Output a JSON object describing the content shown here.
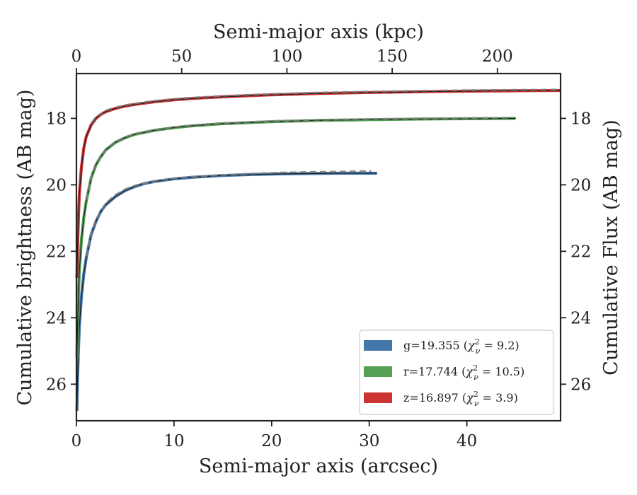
{
  "chart_data": {
    "type": "line",
    "xlabel": "Semi-major axis (arcsec)",
    "xlabel_top": "Semi-major axis (kpc)",
    "ylabel": "Cumulative brightness (AB mag)",
    "ylabel_right": "Cumulative Flux (AB mag)",
    "xlim": [
      0,
      49.6
    ],
    "xlim_top_kpc": [
      0,
      230
    ],
    "ylim": [
      27.1,
      16.65
    ],
    "y_inverted": true,
    "x_ticks": [
      "0",
      "10",
      "20",
      "30",
      "40"
    ],
    "x_ticks_top": [
      "0",
      "50",
      "100",
      "150",
      "200"
    ],
    "y_ticks": [
      "18",
      "20",
      "22",
      "24",
      "26"
    ],
    "legend_position": "lower-right",
    "series": [
      {
        "name": "g=19.355 ($\\chi^2_\\nu=9.2$)",
        "legend_main": "g=19.355 (",
        "legend_chi": "χ",
        "legend_sup": "2",
        "legend_sub": "ν",
        "legend_rest": " = 9.2)",
        "color": "#4477aa",
        "x": [
          0.05,
          0.1,
          0.2,
          0.3,
          0.5,
          0.75,
          1.0,
          1.5,
          2.0,
          2.5,
          3,
          4,
          5,
          6,
          7,
          8,
          10,
          12,
          15,
          18,
          21,
          24,
          27,
          29,
          30.8
        ],
        "y": [
          26.8,
          26.0,
          25.0,
          24.3,
          23.4,
          22.7,
          22.2,
          21.5,
          21.1,
          20.8,
          20.6,
          20.35,
          20.17,
          20.05,
          19.96,
          19.9,
          19.82,
          19.77,
          19.72,
          19.69,
          19.67,
          19.66,
          19.65,
          19.65,
          19.65
        ],
        "model_x": [
          1.0,
          1.5,
          2,
          3,
          4,
          5,
          6,
          8,
          10,
          12,
          15,
          18,
          21,
          24,
          27,
          29,
          30.2
        ],
        "model_y": [
          22.15,
          21.45,
          21.05,
          20.55,
          20.3,
          20.13,
          20.02,
          19.88,
          19.8,
          19.75,
          19.7,
          19.66,
          19.63,
          19.61,
          19.6,
          19.59,
          19.58
        ]
      },
      {
        "name": "r=17.744 ($\\chi^2_\\nu=10.5$)",
        "legend_main": "r=17.744 (",
        "legend_chi": "χ",
        "legend_sup": "2",
        "legend_sub": "ν",
        "legend_rest": " = 10.5)",
        "color": "#55a055",
        "x": [
          0.05,
          0.1,
          0.2,
          0.3,
          0.5,
          0.75,
          1.0,
          1.5,
          2.0,
          2.5,
          3,
          4,
          5,
          6,
          8,
          10,
          12,
          15,
          20,
          25,
          30,
          35,
          40,
          45
        ],
        "y": [
          25.2,
          24.4,
          23.3,
          22.6,
          21.7,
          21.0,
          20.5,
          19.8,
          19.4,
          19.15,
          18.95,
          18.72,
          18.58,
          18.48,
          18.36,
          18.28,
          18.22,
          18.16,
          18.1,
          18.06,
          18.04,
          18.02,
          18.01,
          18.0
        ],
        "model_x": [
          1.0,
          1.5,
          2,
          3,
          4,
          5,
          6,
          8,
          10,
          12,
          15,
          20,
          25,
          30,
          35,
          40,
          44.5
        ],
        "model_y": [
          20.45,
          19.75,
          19.35,
          18.92,
          18.7,
          18.56,
          18.46,
          18.34,
          18.26,
          18.2,
          18.14,
          18.08,
          18.04,
          18.02,
          18.0,
          17.99,
          17.98
        ]
      },
      {
        "name": "z=16.897 ($\\chi^2_\\nu=3.9$)",
        "legend_main": "z=16.897 (",
        "legend_chi": "χ",
        "legend_sup": "2",
        "legend_sub": "ν",
        "legend_rest": " = 3.9)",
        "color": "#cc3333",
        "x": [
          0.05,
          0.1,
          0.2,
          0.3,
          0.5,
          0.75,
          1.0,
          1.5,
          2.0,
          2.5,
          3,
          4,
          5,
          6,
          8,
          10,
          12,
          15,
          20,
          25,
          30,
          35,
          40,
          45,
          49.6
        ],
        "y": [
          22.8,
          22.0,
          21.0,
          20.3,
          19.5,
          18.9,
          18.55,
          18.2,
          18.0,
          17.88,
          17.8,
          17.7,
          17.63,
          17.58,
          17.5,
          17.44,
          17.4,
          17.35,
          17.29,
          17.25,
          17.22,
          17.2,
          17.18,
          17.17,
          17.16
        ],
        "model_x": [
          1.5,
          2,
          3,
          4,
          5,
          6,
          8,
          10,
          12,
          15,
          20,
          25,
          30,
          35,
          40,
          45,
          49.6
        ],
        "model_y": [
          18.15,
          17.95,
          17.76,
          17.67,
          17.6,
          17.55,
          17.47,
          17.41,
          17.37,
          17.32,
          17.26,
          17.22,
          17.19,
          17.17,
          17.15,
          17.14,
          17.13
        ]
      }
    ]
  }
}
